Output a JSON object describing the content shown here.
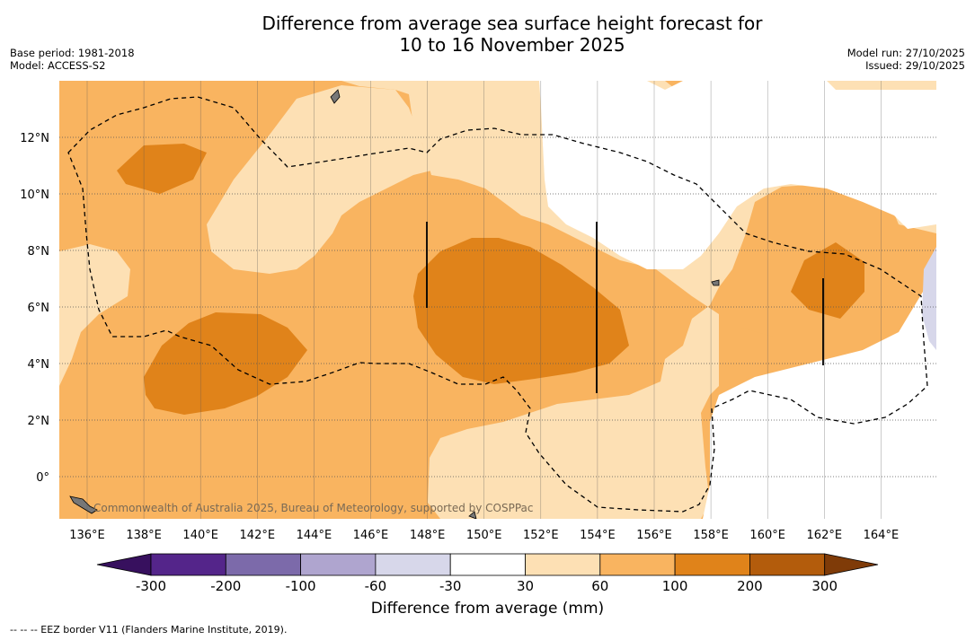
{
  "title_line1": "Difference from average sea surface height forecast for",
  "title_line2": "10 to 16 November 2025",
  "base_period": "Base period: 1981-2018",
  "model": "Model: ACCESS-S2",
  "model_run": "Model run: 27/10/2025",
  "issued": "Issued: 29/10/2025",
  "credit": "Commonwealth of Australia 2025, Bureau of Meteorology, supported by COSPPac",
  "lon_ticks": [
    "136°E",
    "138°E",
    "140°E",
    "142°E",
    "144°E",
    "146°E",
    "148°E",
    "150°E",
    "152°E",
    "154°E",
    "156°E",
    "158°E",
    "160°E",
    "162°E",
    "164°E"
  ],
  "lat_ticks": [
    "12°N",
    "10°N",
    "8°N",
    "6°N",
    "4°N",
    "2°N",
    "0°"
  ],
  "colorbar": {
    "title": "Difference from average (mm)",
    "labels": [
      "-300",
      "-200",
      "-100",
      "-60",
      "-30",
      "30",
      "60",
      "100",
      "200",
      "300"
    ],
    "colors": [
      "#37105e",
      "#54258a",
      "#7c6aaa",
      "#afa5cf",
      "#d7d7ea",
      "#ffffff",
      "#fde0b4",
      "#f9b460",
      "#e0831a",
      "#b35c0c",
      "#7f3b08"
    ]
  },
  "footnote": "--  --  -- EEZ border V11 (Flanders Marine Institute, 2019)."
}
